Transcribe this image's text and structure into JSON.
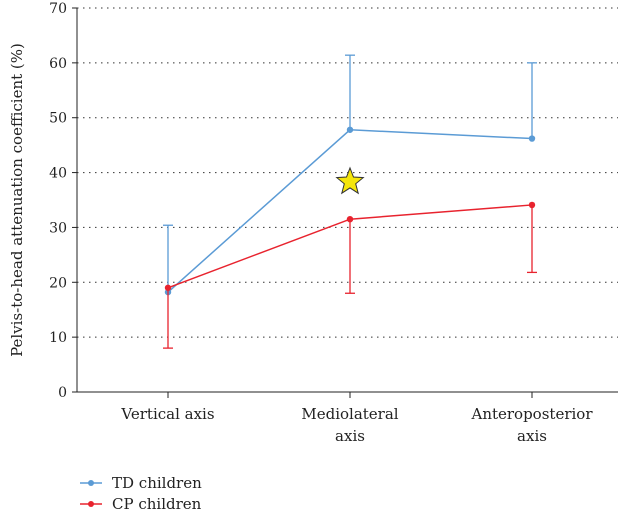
{
  "chart_data": {
    "type": "line",
    "ylabel": "Pelvis-to-head attenuation coefficient (%)",
    "xlabel": "",
    "ylim": [
      0,
      70
    ],
    "yticks": [
      0,
      10,
      20,
      30,
      40,
      50,
      60,
      70
    ],
    "grid": "horizontal-dotted",
    "legend_position": "bottom-left",
    "categories": [
      [
        "Vertical axis"
      ],
      [
        "Mediolateral",
        "axis"
      ],
      [
        "Anteroposterior",
        "axis"
      ]
    ],
    "series": [
      {
        "name": "TD children",
        "color": "#5b9bd5",
        "values": [
          18.2,
          47.8,
          46.2
        ],
        "error": [
          12.2,
          13.6,
          13.8
        ],
        "error_direction": "up"
      },
      {
        "name": "CP children",
        "color": "#e8232e",
        "values": [
          19.0,
          31.5,
          34.1
        ],
        "error": [
          11.0,
          13.5,
          12.3
        ],
        "error_direction": "down"
      }
    ],
    "annotations": [
      {
        "symbol": "star",
        "category_index": 1,
        "y": 38.3,
        "color": "#f5e60c"
      }
    ]
  }
}
